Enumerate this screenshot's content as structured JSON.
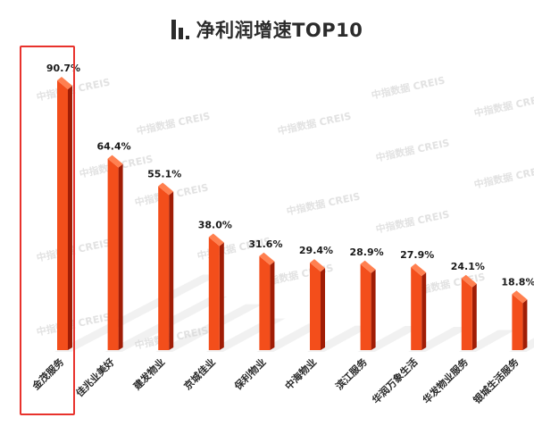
{
  "title": "净利润增速TOP10",
  "watermark": "中指数据 CREIS",
  "colors": {
    "bar": "#f34e1b",
    "bar_dark": "#a01d06",
    "bar_top": "#ff8050",
    "highlight": "#e8322c"
  },
  "chart_data": {
    "type": "bar",
    "title": "净利润增速TOP10",
    "categories": [
      "金茂服务",
      "佳兆业美好",
      "建发物业",
      "京城佳业",
      "保利物业",
      "中海物业",
      "滨江服务",
      "华润万象生活",
      "华发物业服务",
      "银城生活服务"
    ],
    "values": [
      90.7,
      64.4,
      55.1,
      38.0,
      31.6,
      29.4,
      28.9,
      27.9,
      24.1,
      18.8
    ],
    "value_labels": [
      "90.7%",
      "64.4%",
      "55.1%",
      "38.0%",
      "31.6%",
      "29.4%",
      "28.9%",
      "27.9%",
      "24.1%",
      "18.8%"
    ],
    "unit": "%",
    "ylim": [
      0,
      100
    ],
    "grid": false,
    "highlighted_category": "金茂服务"
  }
}
